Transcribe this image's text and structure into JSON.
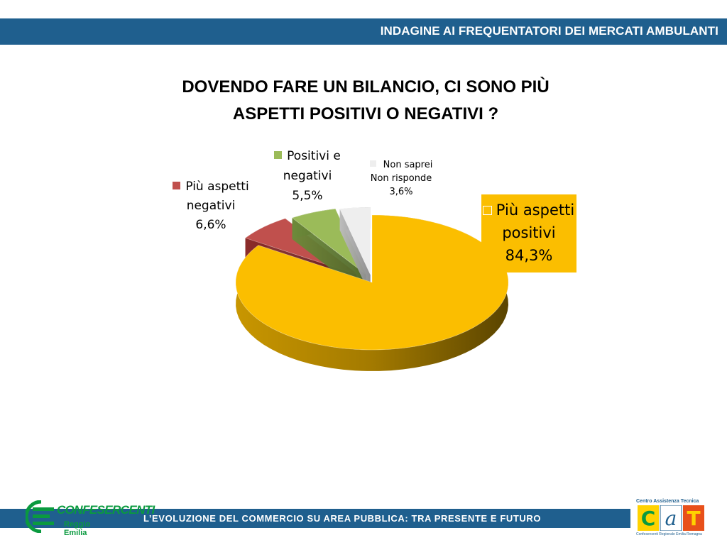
{
  "header": {
    "title": "INDAGINE AI FREQUENTATORI DEI MERCATI AMBULANTI"
  },
  "footer": {
    "text": "L’EVOLUZIONE DEL COMMERCIO SU AREA PUBBLICA: TRA PRESENTE E FUTURO"
  },
  "logos": {
    "left": {
      "brand": "CONFESERCENTI",
      "sub": "Reggio Emilia"
    },
    "right": {
      "name": "Centro Assistenza Tecnica",
      "sub": "Confesercenti Regionale Emilia Romagna"
    }
  },
  "chart_data": {
    "type": "pie",
    "title": "DOVENDO FARE UN BILANCIO, CI SONO PIÙ ASPETTI POSITIVI O NEGATIVI ?",
    "title_lines": [
      "DOVENDO FARE UN BILANCIO, CI SONO PIÙ",
      "ASPETTI POSITIVI O NEGATIVI ?"
    ],
    "style": "3d-exploded",
    "slices": [
      {
        "label_lines": [
          "Più aspetti",
          "positivi"
        ],
        "value": 84.3,
        "value_text": "84,3%",
        "color": "#fbbe00"
      },
      {
        "label_lines": [
          "Più aspetti",
          "negativi"
        ],
        "value": 6.6,
        "value_text": "6,6%",
        "color": "#c0504d"
      },
      {
        "label_lines": [
          "Positivi e",
          "negativi"
        ],
        "value": 5.5,
        "value_text": "5,5%",
        "color": "#9bbb59"
      },
      {
        "label_lines": [
          "Non saprei",
          "Non risponde"
        ],
        "value": 3.6,
        "value_text": "3,6%",
        "color": "#eeeeee"
      }
    ]
  }
}
